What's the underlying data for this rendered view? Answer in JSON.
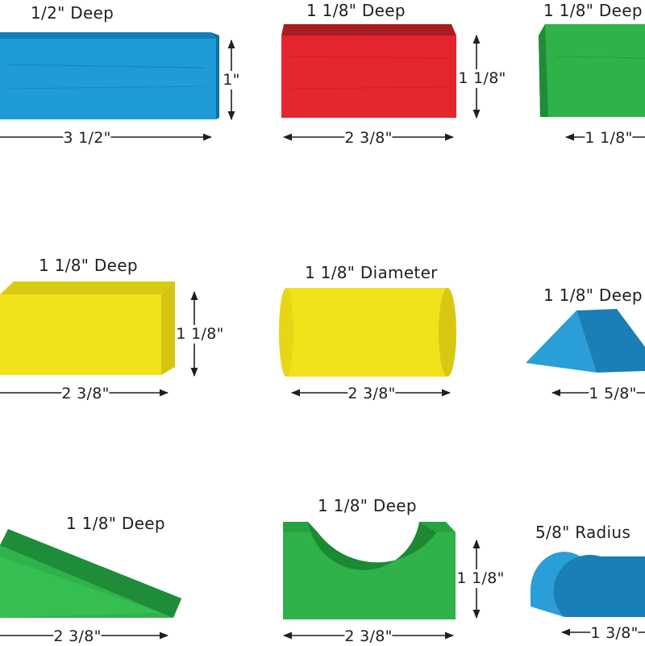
{
  "colors": {
    "blue": "#1E9BD8",
    "red": "#E4262E",
    "green": "#2FB24A",
    "yellow": "#F2E21B",
    "teal": "#2A9ED6",
    "dark_green": "#1F8C39"
  },
  "blocks": {
    "blue_rect": {
      "depth": "1/2\" Deep",
      "width": "3 1/2\"",
      "height": "1\""
    },
    "red_rect": {
      "depth": "1 1/8\" Deep",
      "width": "2 3/8\"",
      "height": "1 1/8\""
    },
    "green_cube": {
      "depth": "1 1/8\" Deep",
      "width": "1 1/8\""
    },
    "yellow_rect": {
      "depth": "1 1/8\" Deep",
      "width": "2 3/8\"",
      "height": "1 1/8\""
    },
    "yellow_cylinder": {
      "diameter": "1 1/8\" Diameter",
      "width": "2 3/8\""
    },
    "blue_triangle": {
      "depth": "1 1/8\" Deep",
      "width": "1 5/8\""
    },
    "green_ramp": {
      "depth": "1 1/8\" Deep",
      "width": "2 3/8\""
    },
    "green_arch": {
      "depth": "1 1/8\" Deep",
      "width": "2 3/8\"",
      "height": "1 1/8\""
    },
    "blue_halfround": {
      "radius": "5/8\" Radius",
      "width": "1 3/8\""
    }
  }
}
